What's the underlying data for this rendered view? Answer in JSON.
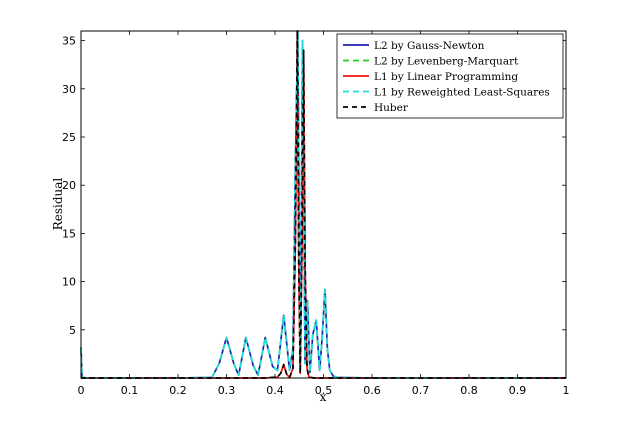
{
  "chart_data": {
    "type": "line",
    "title": "",
    "xlabel": "x",
    "ylabel": "Residual",
    "xlim": [
      0,
      1
    ],
    "ylim": [
      0,
      36
    ],
    "x_ticks": [
      0,
      0.1,
      0.2,
      0.3,
      0.4,
      0.5,
      0.6,
      0.7,
      0.8,
      0.9,
      1
    ],
    "x_tick_labels": [
      "0",
      "0.1",
      "0.2",
      "0.3",
      "0.4",
      "0.5",
      "0.6",
      "0.7",
      "0.8",
      "0.9",
      "1"
    ],
    "y_ticks": [
      5,
      10,
      15,
      20,
      25,
      30,
      35
    ],
    "y_tick_labels": [
      "5",
      "10",
      "15",
      "20",
      "25",
      "30",
      "35"
    ],
    "grid": false,
    "legend_position": "top-right",
    "series": [
      {
        "name": "L2 by Gauss-Newton",
        "color": "#1f1fb4",
        "dash": "solid",
        "x": [
          0,
          0.002,
          0.01,
          0.2,
          0.27,
          0.285,
          0.3,
          0.315,
          0.325,
          0.34,
          0.355,
          0.365,
          0.38,
          0.395,
          0.405,
          0.418,
          0.43,
          0.437,
          0.442,
          0.447,
          0.452,
          0.457,
          0.462,
          0.467,
          0.472,
          0.478,
          0.485,
          0.492,
          0.497,
          0.503,
          0.508,
          0.513,
          0.52,
          0.53,
          0.6,
          0.7,
          0.8,
          0.9,
          1
        ],
        "y": [
          3.2,
          0.1,
          0,
          0,
          0.05,
          1.5,
          4.2,
          1.5,
          0.3,
          4.2,
          1.3,
          0.3,
          4.2,
          1.2,
          0.8,
          6.5,
          0.8,
          3,
          22,
          36,
          2,
          35,
          1.5,
          8,
          0.6,
          4.5,
          6,
          0.8,
          4,
          9.2,
          3,
          0.8,
          0.2,
          0.05,
          0,
          0,
          0,
          0,
          0
        ]
      },
      {
        "name": "L2 by Levenberg-Marquart",
        "color": "#22cc22",
        "dash": "6,4",
        "x": [
          0,
          0.002,
          0.01,
          0.2,
          0.27,
          0.285,
          0.3,
          0.315,
          0.325,
          0.34,
          0.355,
          0.365,
          0.38,
          0.395,
          0.405,
          0.418,
          0.43,
          0.437,
          0.442,
          0.447,
          0.452,
          0.457,
          0.462,
          0.467,
          0.472,
          0.478,
          0.485,
          0.492,
          0.497,
          0.503,
          0.508,
          0.513,
          0.52,
          0.53,
          0.6,
          0.7,
          0.8,
          0.9,
          1
        ],
        "y": [
          3.2,
          0.1,
          0,
          0,
          0.05,
          1.5,
          4.2,
          1.5,
          0.3,
          4.2,
          1.3,
          0.3,
          4.2,
          1.2,
          0.8,
          6.5,
          0.8,
          3,
          22,
          36,
          2,
          35,
          1.5,
          8,
          0.6,
          4.5,
          6,
          0.8,
          4,
          9.2,
          3,
          0.8,
          0.2,
          0.05,
          0,
          0,
          0,
          0,
          0
        ]
      },
      {
        "name": "L1 by Linear Programming",
        "color": "#ee1111",
        "dash": "solid",
        "x": [
          0,
          0.38,
          0.405,
          0.412,
          0.418,
          0.424,
          0.43,
          0.437,
          0.442,
          0.446,
          0.449,
          0.452,
          0.456,
          0.459,
          0.462,
          0.466,
          0.47,
          0.48,
          0.5,
          0.6,
          0.7,
          0.8,
          0.9,
          1
        ],
        "y": [
          0,
          0,
          0.1,
          0.5,
          1.4,
          0.4,
          0.05,
          1,
          14,
          36,
          12,
          0.5,
          15,
          34,
          12,
          1,
          0.1,
          0,
          0,
          0,
          0,
          0,
          0,
          0
        ]
      },
      {
        "name": "L1 by Reweighted Least-Squares",
        "color": "#22dddd",
        "dash": "6,4",
        "x": [
          0,
          0.002,
          0.01,
          0.2,
          0.27,
          0.285,
          0.3,
          0.315,
          0.325,
          0.34,
          0.355,
          0.365,
          0.38,
          0.395,
          0.405,
          0.418,
          0.43,
          0.437,
          0.442,
          0.447,
          0.452,
          0.457,
          0.462,
          0.467,
          0.472,
          0.478,
          0.485,
          0.492,
          0.497,
          0.503,
          0.508,
          0.513,
          0.52,
          0.53,
          0.6,
          0.7,
          0.8,
          0.9,
          1
        ],
        "y": [
          3.2,
          0.1,
          0,
          0,
          0.05,
          1.5,
          4.2,
          1.5,
          0.3,
          4.2,
          1.3,
          0.3,
          4.2,
          1.2,
          0.8,
          6.5,
          0.8,
          3,
          22,
          36,
          2,
          35,
          1.5,
          8,
          0.6,
          4.5,
          6,
          0.8,
          4,
          9.2,
          3,
          0.8,
          0.2,
          0.05,
          0,
          0,
          0,
          0,
          0
        ]
      },
      {
        "name": "Huber",
        "color": "#000000",
        "dash": "5,4",
        "x": [
          0,
          0.38,
          0.405,
          0.412,
          0.418,
          0.424,
          0.43,
          0.437,
          0.442,
          0.446,
          0.449,
          0.452,
          0.456,
          0.459,
          0.462,
          0.466,
          0.47,
          0.48,
          0.5,
          0.6,
          0.7,
          0.8,
          0.9,
          1
        ],
        "y": [
          0,
          0,
          0.1,
          0.5,
          1.4,
          0.4,
          0.05,
          1,
          14,
          36,
          12,
          0.5,
          15,
          34,
          12,
          1,
          0.1,
          0,
          0,
          0,
          0,
          0,
          0,
          0
        ]
      }
    ]
  }
}
